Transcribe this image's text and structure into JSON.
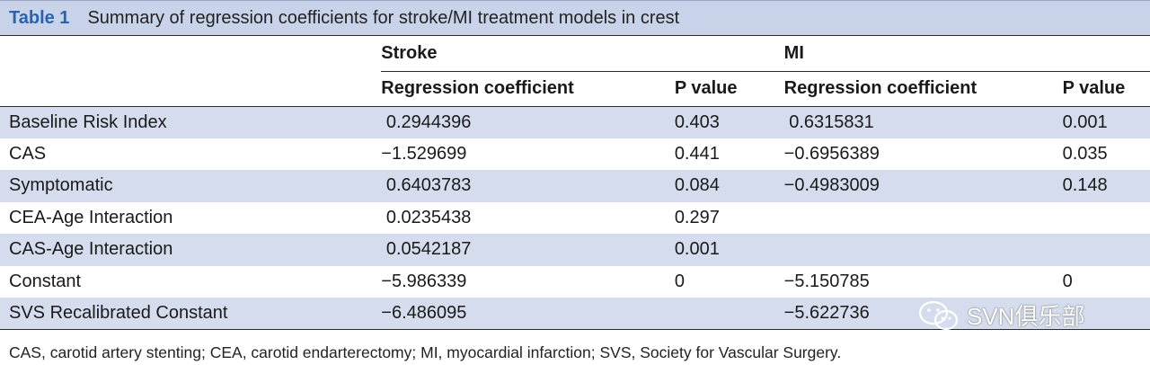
{
  "caption": {
    "label": "Table 1",
    "title": "Summary of regression coefficients for stroke/MI treatment models in crest"
  },
  "table": {
    "group_headers": [
      "Stroke",
      "MI"
    ],
    "sub_headers": [
      "Regression coefficient",
      "P value",
      "Regression coefficient",
      "P value"
    ],
    "rows": [
      {
        "label": "Baseline Risk Index",
        "stroke_coef": " 0.2944396",
        "stroke_p": "0.403",
        "mi_coef": " 0.6315831",
        "mi_p": "0.001"
      },
      {
        "label": "CAS",
        "stroke_coef": "−1.529699",
        "stroke_p": "0.441",
        "mi_coef": "−0.6956389",
        "mi_p": "0.035"
      },
      {
        "label": "Symptomatic",
        "stroke_coef": " 0.6403783",
        "stroke_p": "0.084",
        "mi_coef": "−0.4983009",
        "mi_p": "0.148"
      },
      {
        "label": "CEA-Age Interaction",
        "stroke_coef": " 0.0235438",
        "stroke_p": "0.297",
        "mi_coef": "",
        "mi_p": ""
      },
      {
        "label": "CAS-Age Interaction",
        "stroke_coef": " 0.0542187",
        "stroke_p": "0.001",
        "mi_coef": "",
        "mi_p": ""
      },
      {
        "label": "Constant",
        "stroke_coef": "−5.986339",
        "stroke_p": "0",
        "mi_coef": "−5.150785",
        "mi_p": "0"
      },
      {
        "label": "SVS Recalibrated Constant",
        "stroke_coef": "−6.486095",
        "stroke_p": "",
        "mi_coef": "−5.622736",
        "mi_p": ""
      }
    ]
  },
  "footnote": "CAS, carotid artery stenting; CEA, carotid endarterectomy; MI, myocardial infarction; SVS, Society for Vascular Surgery.",
  "watermark": {
    "text": "SVN俱乐部",
    "icon": "wechat-icon"
  },
  "colors": {
    "caption_bg": "#c8d3ea",
    "caption_label": "#2a63ad",
    "row_shade": "#d4dcee"
  }
}
